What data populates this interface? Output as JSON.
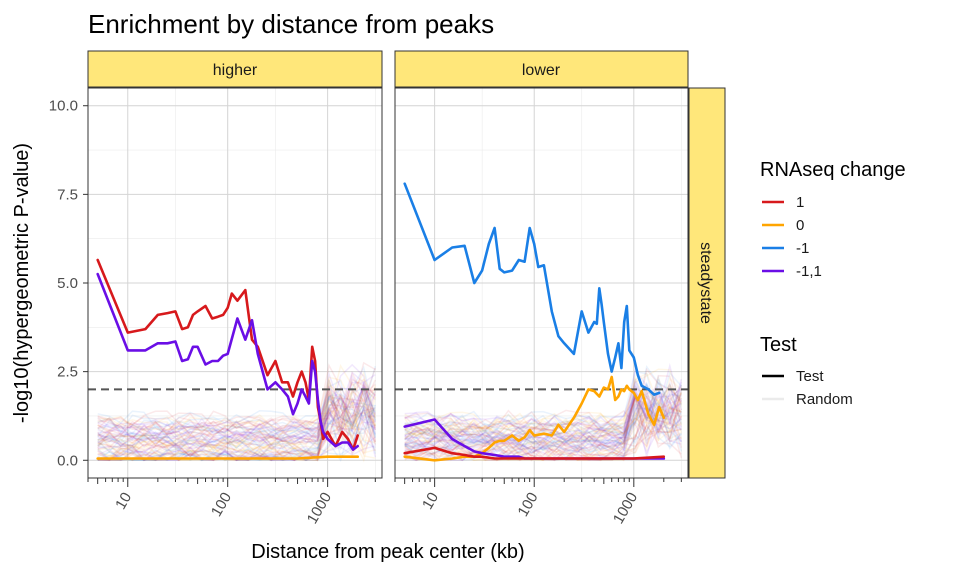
{
  "chart_data": {
    "type": "line",
    "title": "Enrichment by distance from peaks",
    "xlabel": "Distance from peak center (kb)",
    "ylabel": "-log10(hypergeometric P-value)",
    "x_scale": "log10",
    "xlim": [
      4,
      3500
    ],
    "ylim": [
      -0.5,
      10.5
    ],
    "x_ticks": [
      10,
      100,
      1000
    ],
    "x_tick_labels": [
      "10",
      "100",
      "1000"
    ],
    "y_ticks": [
      0,
      2.5,
      5,
      7.5,
      10
    ],
    "y_tick_labels": [
      "0.0",
      "2.5",
      "5.0",
      "7.5",
      "10.0"
    ],
    "threshold": 2,
    "grid": true,
    "legend_position": "right",
    "facets": {
      "columns": [
        "higher",
        "lower"
      ],
      "row": "steadystate"
    },
    "colors": {
      "1": "#d7191c",
      "0": "#ffa500",
      "-1": "#1a7fe6",
      "-1,1": "#6a0ee6",
      "strip_fill": "#ffe77a",
      "threshold": "#555555"
    },
    "legends": [
      {
        "title": "RNAseq change",
        "entries": [
          {
            "label": "1",
            "color": "#d7191c"
          },
          {
            "label": "0",
            "color": "#ffa500"
          },
          {
            "label": "-1",
            "color": "#1a7fe6"
          },
          {
            "label": "-1,1",
            "color": "#6a0ee6"
          }
        ]
      },
      {
        "title": "Test",
        "entries": [
          {
            "label": "Test",
            "style": "solid"
          },
          {
            "label": "Random",
            "style": "faint"
          }
        ]
      }
    ],
    "panels": [
      {
        "facet": "higher",
        "series": [
          {
            "change": "1",
            "test": "Test",
            "x": [
              5,
              10,
              15,
              20,
              25,
              30,
              35,
              40,
              45,
              50,
              60,
              70,
              80,
              90,
              100,
              110,
              125,
              150,
              175,
              200,
              250,
              300,
              350,
              400,
              450,
              500,
              550,
              600,
              650,
              700,
              750,
              800,
              850,
              900,
              1000,
              1200,
              1400,
              1600,
              1800,
              2000
            ],
            "y": [
              5.65,
              3.6,
              3.7,
              4.1,
              4.15,
              4.2,
              3.7,
              3.75,
              4.1,
              4.2,
              4.35,
              4.0,
              4.05,
              4.1,
              4.3,
              4.7,
              4.5,
              4.8,
              3.4,
              3.2,
              2.4,
              2.8,
              2.2,
              2.2,
              1.8,
              2.2,
              2.5,
              2.2,
              1.7,
              3.2,
              2.8,
              1.5,
              1.1,
              0.6,
              0.8,
              0.4,
              0.8,
              0.6,
              0.3,
              0.7
            ]
          },
          {
            "change": "-1,1",
            "test": "Test",
            "x": [
              5,
              10,
              15,
              20,
              25,
              30,
              35,
              40,
              45,
              50,
              60,
              70,
              80,
              90,
              100,
              125,
              150,
              175,
              200,
              250,
              300,
              350,
              400,
              450,
              500,
              550,
              600,
              650,
              700,
              750,
              800,
              850,
              900,
              1000,
              1200,
              1400,
              1600,
              1800,
              2000
            ],
            "y": [
              5.25,
              3.1,
              3.1,
              3.3,
              3.3,
              3.35,
              2.8,
              2.85,
              3.2,
              3.2,
              2.7,
              2.8,
              2.8,
              2.95,
              3.0,
              4.0,
              3.4,
              3.95,
              3.0,
              2.0,
              2.2,
              2.0,
              1.8,
              1.3,
              1.6,
              2.0,
              1.8,
              1.6,
              2.8,
              2.5,
              1.7,
              1.1,
              0.8,
              0.6,
              0.4,
              0.5,
              0.5,
              0.3,
              0.4
            ]
          },
          {
            "change": "0",
            "test": "Test",
            "x": [
              5,
              10,
              50,
              100,
              500,
              1000,
              2000
            ],
            "y": [
              0.05,
              0.05,
              0.05,
              0.05,
              0.05,
              0.1,
              0.1
            ]
          }
        ]
      },
      {
        "facet": "lower",
        "series": [
          {
            "change": "-1",
            "test": "Test",
            "x": [
              5,
              10,
              15,
              20,
              25,
              30,
              35,
              40,
              45,
              50,
              60,
              70,
              80,
              90,
              100,
              110,
              125,
              150,
              175,
              200,
              250,
              300,
              350,
              400,
              425,
              450,
              475,
              500,
              550,
              600,
              650,
              700,
              750,
              800,
              850,
              900,
              1000,
              1100,
              1200,
              1400,
              1600,
              1800
            ],
            "y": [
              7.8,
              5.65,
              6.0,
              6.05,
              5.0,
              5.35,
              6.1,
              6.55,
              5.4,
              5.3,
              5.35,
              5.65,
              5.6,
              6.55,
              6.1,
              5.45,
              5.5,
              4.2,
              3.5,
              3.3,
              3.0,
              4.2,
              3.6,
              3.9,
              3.85,
              4.85,
              4.4,
              3.9,
              3.0,
              2.5,
              2.9,
              3.3,
              2.6,
              3.9,
              4.35,
              3.1,
              2.9,
              2.4,
              2.1,
              2.0,
              1.85,
              1.9
            ]
          },
          {
            "change": "0",
            "test": "Test",
            "x": [
              5,
              10,
              15,
              20,
              25,
              30,
              35,
              40,
              45,
              50,
              60,
              70,
              80,
              90,
              100,
              125,
              150,
              175,
              200,
              250,
              300,
              350,
              400,
              450,
              500,
              550,
              600,
              650,
              700,
              750,
              800,
              850,
              900,
              1000,
              1100,
              1200,
              1400,
              1600,
              1800,
              2000
            ],
            "y": [
              0.1,
              0.0,
              0.05,
              0.1,
              0.1,
              0.2,
              0.35,
              0.5,
              0.55,
              0.55,
              0.7,
              0.55,
              0.65,
              0.85,
              0.7,
              0.75,
              0.7,
              1.0,
              0.8,
              1.2,
              1.6,
              2.0,
              1.95,
              1.8,
              2.05,
              2.0,
              2.35,
              1.7,
              1.8,
              2.0,
              1.95,
              2.1,
              2.0,
              1.9,
              1.7,
              1.95,
              1.3,
              1.0,
              1.5,
              1.2
            ]
          },
          {
            "change": "-1,1",
            "test": "Test",
            "x": [
              5,
              10,
              15,
              20,
              25,
              30,
              40,
              50,
              60,
              70,
              80,
              100,
              150,
              200,
              300,
              500,
              1000,
              2000
            ],
            "y": [
              0.95,
              1.15,
              0.6,
              0.4,
              0.25,
              0.2,
              0.15,
              0.1,
              0.1,
              0.1,
              0.05,
              0.05,
              0.05,
              0.05,
              0.05,
              0.05,
              0.05,
              0.05
            ]
          },
          {
            "change": "1",
            "test": "Test",
            "x": [
              5,
              10,
              15,
              20,
              25,
              30,
              40,
              50,
              70,
              100,
              200,
              500,
              1000,
              2000
            ],
            "y": [
              0.2,
              0.35,
              0.2,
              0.15,
              0.1,
              0.1,
              0.05,
              0.05,
              0.05,
              0.05,
              0.05,
              0.05,
              0.05,
              0.1
            ]
          }
        ]
      }
    ]
  }
}
